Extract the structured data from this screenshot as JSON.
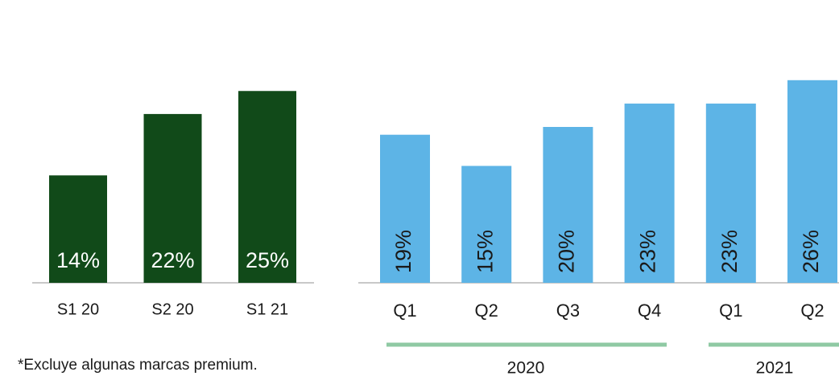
{
  "chart_data": [
    {
      "type": "bar",
      "categories": [
        "S1 20",
        "S2 20",
        "S1 21"
      ],
      "values": [
        14,
        22,
        25
      ],
      "value_labels": [
        "14%",
        "22%",
        "25%"
      ],
      "color": "#114a19"
    },
    {
      "type": "bar",
      "categories": [
        "Q1",
        "Q2",
        "Q3",
        "Q4",
        "Q1",
        "Q2"
      ],
      "values": [
        19,
        15,
        20,
        23,
        23,
        26
      ],
      "value_labels": [
        "19%",
        "15%",
        "20%",
        "23%",
        "23%",
        "26%"
      ],
      "color": "#5db4e6",
      "groups": [
        "2020",
        "2021"
      ]
    }
  ],
  "footnote": "*Excluye algunas marcas premium."
}
